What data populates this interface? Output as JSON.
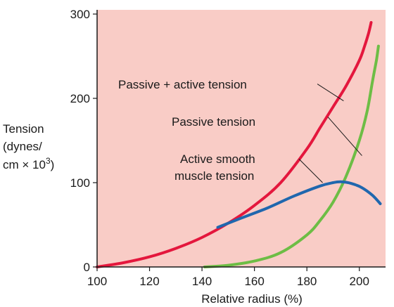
{
  "chart_data": {
    "type": "line",
    "xlabel": "Relative radius (%)",
    "ylabel_lines": [
      "Tension",
      "(dynes/",
      "cm × 10",
      "3",
      ")"
    ],
    "xlim": [
      100,
      210
    ],
    "ylim": [
      0,
      305
    ],
    "xticks": [
      100,
      120,
      140,
      160,
      180,
      200
    ],
    "yticks": [
      0,
      100,
      200,
      300
    ],
    "grid": false,
    "background": "#f9ccc6",
    "series": [
      {
        "name": "Passive + active tension",
        "color": "#e4173d",
        "x": [
          100,
          110,
          120,
          130,
          140,
          150,
          160,
          170,
          180,
          185,
          190,
          195,
          200,
          202,
          203.5,
          204.5
        ],
        "y": [
          0,
          5,
          12,
          22,
          35,
          52,
          73,
          100,
          140,
          165,
          190,
          215,
          245,
          262,
          277,
          290
        ]
      },
      {
        "name": "Passive tension",
        "color": "#6dbd45",
        "x": [
          141,
          150,
          160,
          170,
          180,
          185,
          190,
          195,
          200,
          203,
          205,
          206.5,
          207.3
        ],
        "y": [
          0,
          2,
          7,
          17,
          38,
          55,
          77,
          108,
          150,
          185,
          220,
          245,
          262
        ]
      },
      {
        "name": "Active smooth muscle tension",
        "color": "#2067ae",
        "x": [
          146,
          155,
          165,
          175,
          185,
          190,
          193,
          197,
          201,
          205,
          208
        ],
        "y": [
          47,
          58,
          70,
          84,
          96,
          100,
          101,
          99,
          94,
          85,
          75
        ]
      }
    ],
    "annotations": [
      {
        "label": "Passive + active tension",
        "line_start": [
          184,
          217
        ],
        "line_end": [
          194,
          197
        ]
      },
      {
        "label": "Passive tension",
        "line_start": [
          188,
          178
        ],
        "line_end": [
          201,
          132
        ]
      },
      {
        "label": "Active smooth",
        "label2": "muscle tension",
        "line_start": [
          177,
          128
        ],
        "line_end": [
          186,
          100
        ]
      }
    ]
  }
}
